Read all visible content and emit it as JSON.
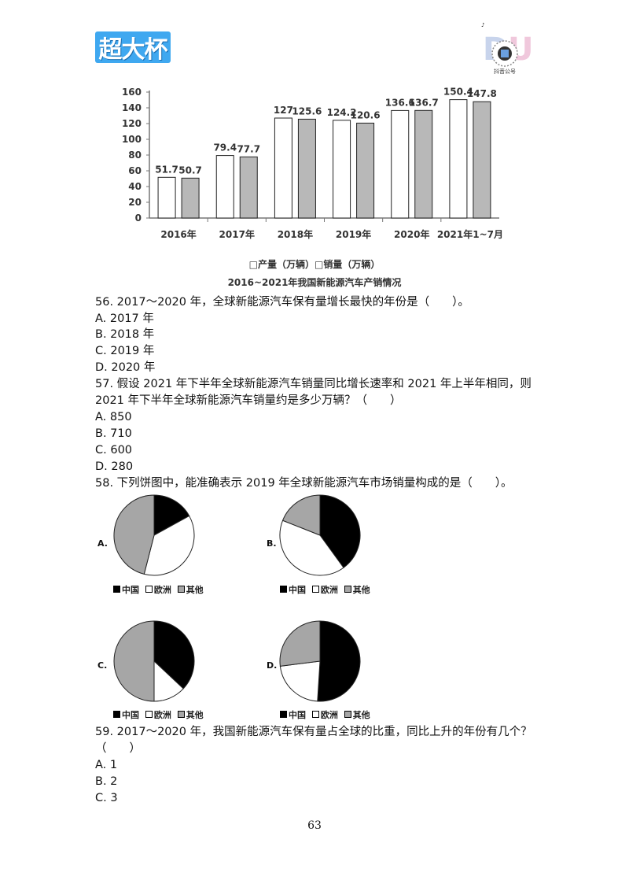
{
  "header": {
    "logo_text": "超大杯",
    "qr_caption": "抖音公号"
  },
  "chart_data": {
    "type": "bar",
    "categories": [
      "2016年",
      "2017年",
      "2018年",
      "2019年",
      "2020年",
      "2021年1~7月"
    ],
    "series": [
      {
        "name": "产量（万辆）",
        "values": [
          51.7,
          79.4,
          127,
          124.2,
          136.6,
          150.4
        ],
        "color": "#ffffff"
      },
      {
        "name": "销量（万辆）",
        "values": [
          50.7,
          77.7,
          125.6,
          120.6,
          136.7,
          147.8
        ],
        "color": "#b8b8b8"
      }
    ],
    "yticks": [
      0,
      20,
      40,
      60,
      80,
      100,
      120,
      140,
      160
    ],
    "ylim": [
      0,
      160
    ],
    "legend": "□产量（万辆）□销量（万辆）",
    "title": "2016~2021年我国新能源汽车产销情况"
  },
  "questions": {
    "q56": {
      "stem": "56. 2017～2020 年，全球新能源汽车保有量增长最快的年份是（　　）。",
      "options": [
        "A. 2017 年",
        "B. 2018 年",
        "C. 2019 年",
        "D. 2020 年"
      ]
    },
    "q57": {
      "stem_line1": "57. 假设 2021 年下半年全球新能源汽车销量同比增长速率和 2021 年上半年相同，则",
      "stem_line2": "2021 年下半年全球新能源汽车销量约是多少万辆？（　　）",
      "options": [
        "A. 850",
        "B. 710",
        "C. 600",
        "D. 280"
      ]
    },
    "q58": {
      "stem": "58. 下列饼图中，能准确表示 2019 年全球新能源汽车市场销量构成的是（　　）。",
      "legend": [
        "中国",
        "欧洲",
        "其他"
      ],
      "colors": {
        "china": "#000000",
        "europe": "#ffffff",
        "other": "#a6a6a6"
      },
      "pies": [
        {
          "letter": "A.",
          "china": 0.17,
          "europe": 0.37,
          "other": 0.46
        },
        {
          "letter": "B.",
          "china": 0.4,
          "europe": 0.41,
          "other": 0.19
        },
        {
          "letter": "C.",
          "china": 0.37,
          "europe": 0.13,
          "other": 0.5
        },
        {
          "letter": "D.",
          "china": 0.51,
          "europe": 0.22,
          "other": 0.27
        }
      ]
    },
    "q59": {
      "stem_line1": "59. 2017～2020 年，我国新能源汽车保有量占全球的比重，同比上升的年份有几个？",
      "stem_line2": "（　　）",
      "options": [
        "A. 1",
        "B. 2",
        "C. 3"
      ]
    }
  },
  "footer": {
    "page_number": "63"
  }
}
